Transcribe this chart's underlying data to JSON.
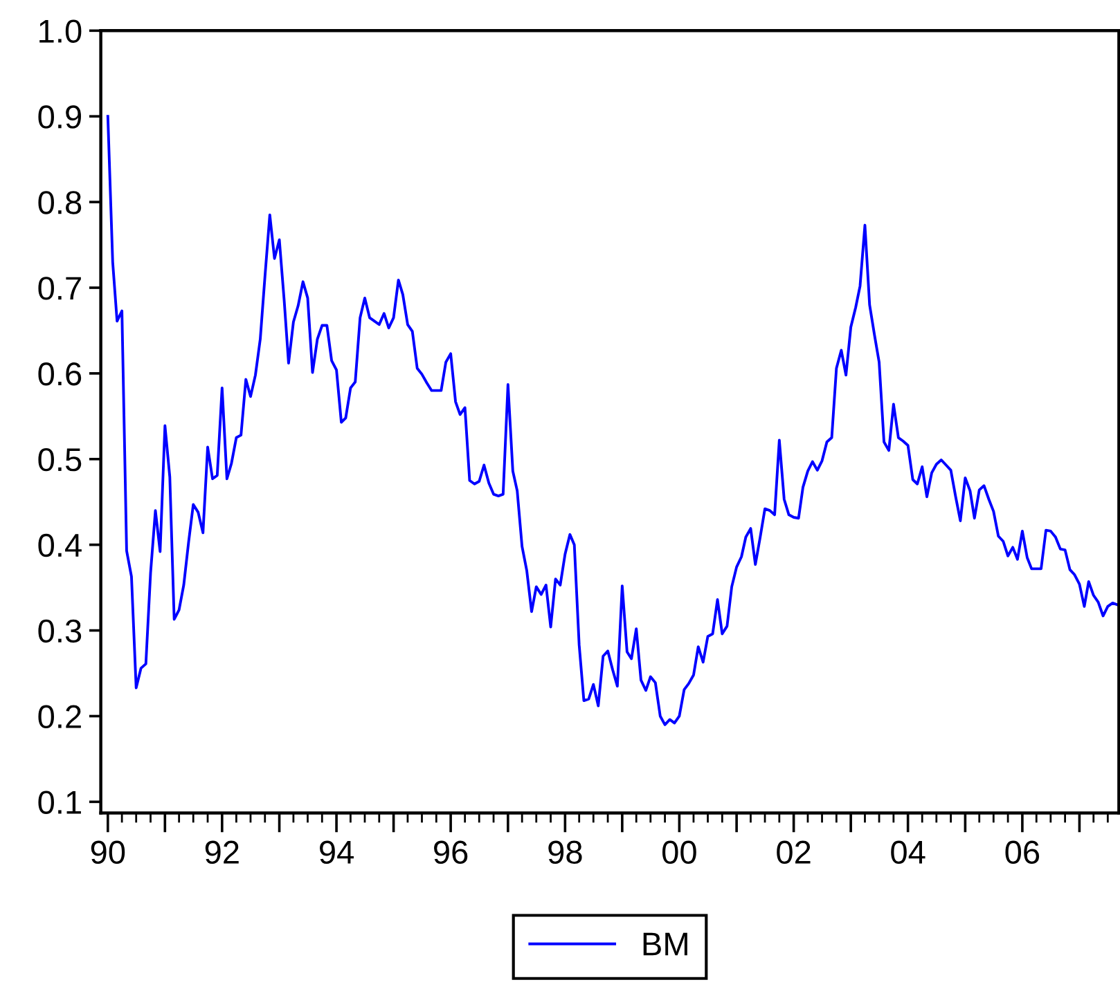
{
  "chart_data": {
    "type": "line",
    "legend": "bottom",
    "grid": false,
    "marker": "none",
    "line_style": "solid",
    "xlim": [
      "1989-11-17",
      "2007-09-10"
    ],
    "xticks": [
      {
        "value": "1990-01",
        "label": "90"
      },
      {
        "value": "1990-04",
        "label": null
      },
      {
        "value": "1990-07",
        "label": null
      },
      {
        "value": "1990-10",
        "label": null
      },
      {
        "value": "1991-01",
        "label": null
      },
      {
        "value": "1991-04",
        "label": null
      },
      {
        "value": "1991-07",
        "label": null
      },
      {
        "value": "1991-10",
        "label": null
      },
      {
        "value": "1992-01",
        "label": "92"
      },
      {
        "value": "1992-04",
        "label": null
      },
      {
        "value": "1992-07",
        "label": null
      },
      {
        "value": "1992-10",
        "label": null
      },
      {
        "value": "1993-01",
        "label": null
      },
      {
        "value": "1993-04",
        "label": null
      },
      {
        "value": "1993-07",
        "label": null
      },
      {
        "value": "1993-10",
        "label": null
      },
      {
        "value": "1994-01",
        "label": "94"
      },
      {
        "value": "1994-04",
        "label": null
      },
      {
        "value": "1994-07",
        "label": null
      },
      {
        "value": "1994-10",
        "label": null
      },
      {
        "value": "1995-01",
        "label": null
      },
      {
        "value": "1995-04",
        "label": null
      },
      {
        "value": "1995-07",
        "label": null
      },
      {
        "value": "1995-10",
        "label": null
      },
      {
        "value": "1996-01",
        "label": "96"
      },
      {
        "value": "1996-04",
        "label": null
      },
      {
        "value": "1996-07",
        "label": null
      },
      {
        "value": "1996-10",
        "label": null
      },
      {
        "value": "1997-01",
        "label": null
      },
      {
        "value": "1997-04",
        "label": null
      },
      {
        "value": "1997-07",
        "label": null
      },
      {
        "value": "1997-10",
        "label": null
      },
      {
        "value": "1998-01",
        "label": "98"
      },
      {
        "value": "1998-04",
        "label": null
      },
      {
        "value": "1998-07",
        "label": null
      },
      {
        "value": "1998-10",
        "label": null
      },
      {
        "value": "1999-01",
        "label": null
      },
      {
        "value": "1999-04",
        "label": null
      },
      {
        "value": "1999-07",
        "label": null
      },
      {
        "value": "1999-10",
        "label": null
      },
      {
        "value": "2000-01",
        "label": "00"
      },
      {
        "value": "2000-04",
        "label": null
      },
      {
        "value": "2000-07",
        "label": null
      },
      {
        "value": "2000-10",
        "label": null
      },
      {
        "value": "2001-01",
        "label": null
      },
      {
        "value": "2001-04",
        "label": null
      },
      {
        "value": "2001-07",
        "label": null
      },
      {
        "value": "2001-10",
        "label": null
      },
      {
        "value": "2002-01",
        "label": "02"
      },
      {
        "value": "2002-04",
        "label": null
      },
      {
        "value": "2002-07",
        "label": null
      },
      {
        "value": "2002-10",
        "label": null
      },
      {
        "value": "2003-01",
        "label": null
      },
      {
        "value": "2003-04",
        "label": null
      },
      {
        "value": "2003-07",
        "label": null
      },
      {
        "value": "2003-10",
        "label": null
      },
      {
        "value": "2004-01",
        "label": "04"
      },
      {
        "value": "2004-04",
        "label": null
      },
      {
        "value": "2004-07",
        "label": null
      },
      {
        "value": "2004-10",
        "label": null
      },
      {
        "value": "2005-01",
        "label": null
      },
      {
        "value": "2005-04",
        "label": null
      },
      {
        "value": "2005-07",
        "label": null
      },
      {
        "value": "2005-10",
        "label": null
      },
      {
        "value": "2006-01",
        "label": "06"
      },
      {
        "value": "2006-04",
        "label": null
      },
      {
        "value": "2006-07",
        "label": null
      },
      {
        "value": "2006-10",
        "label": null
      },
      {
        "value": "2007-01",
        "label": null
      },
      {
        "value": "2007-04",
        "label": null
      },
      {
        "value": "2007-07",
        "label": null
      }
    ],
    "ylim": [
      0.087,
      1.0
    ],
    "yticks": [
      0.1,
      0.2,
      0.3,
      0.4,
      0.5,
      0.6,
      0.7,
      0.8,
      0.9,
      {
        "value": 1,
        "label": "1.0"
      }
    ],
    "x": [
      "1990-01",
      "1990-02",
      "1990-03",
      "1990-04",
      "1990-05",
      "1990-06",
      "1990-07",
      "1990-08",
      "1990-09",
      "1990-10",
      "1990-11",
      "1990-12",
      "1991-01",
      "1991-02",
      "1991-03",
      "1991-04",
      "1991-05",
      "1991-06",
      "1991-07",
      "1991-08",
      "1991-09",
      "1991-10",
      "1991-11",
      "1991-12",
      "1992-01",
      "1992-02",
      "1992-03",
      "1992-04",
      "1992-05",
      "1992-06",
      "1992-07",
      "1992-08",
      "1992-09",
      "1992-10",
      "1992-11",
      "1992-12",
      "1993-01",
      "1993-02",
      "1993-03",
      "1993-04",
      "1993-05",
      "1993-06",
      "1993-07",
      "1993-08",
      "1993-09",
      "1993-10",
      "1993-11",
      "1993-12",
      "1994-01",
      "1994-02",
      "1994-03",
      "1994-04",
      "1994-05",
      "1994-06",
      "1994-07",
      "1994-08",
      "1994-09",
      "1994-10",
      "1994-11",
      "1994-12",
      "1995-01",
      "1995-02",
      "1995-03",
      "1995-04",
      "1995-05",
      "1995-06",
      "1995-07",
      "1995-08",
      "1995-09",
      "1995-10",
      "1995-11",
      "1995-12",
      "1996-01",
      "1996-02",
      "1996-03",
      "1996-04",
      "1996-05",
      "1996-06",
      "1996-07",
      "1996-08",
      "1996-09",
      "1996-10",
      "1996-11",
      "1996-12",
      "1997-01",
      "1997-02",
      "1997-03",
      "1997-04",
      "1997-05",
      "1997-06",
      "1997-07",
      "1997-08",
      "1997-09",
      "1997-10",
      "1997-11",
      "1997-12",
      "1998-01",
      "1998-02",
      "1998-03",
      "1998-04",
      "1998-05",
      "1998-06",
      "1998-07",
      "1998-08",
      "1998-09",
      "1998-10",
      "1998-11",
      "1998-12",
      "1999-01",
      "1999-02",
      "1999-03",
      "1999-04",
      "1999-05",
      "1999-06",
      "1999-07",
      "1999-08",
      "1999-09",
      "1999-10",
      "1999-11",
      "1999-12",
      "2000-01",
      "2000-02",
      "2000-03",
      "2000-04",
      "2000-05",
      "2000-06",
      "2000-07",
      "2000-08",
      "2000-09",
      "2000-10",
      "2000-11",
      "2000-12",
      "2001-01",
      "2001-02",
      "2001-03",
      "2001-04",
      "2001-05",
      "2001-06",
      "2001-07",
      "2001-08",
      "2001-09",
      "2001-10",
      "2001-11",
      "2001-12",
      "2002-01",
      "2002-02",
      "2002-03",
      "2002-04",
      "2002-05",
      "2002-06",
      "2002-07",
      "2002-08",
      "2002-09",
      "2002-10",
      "2002-11",
      "2002-12",
      "2003-01",
      "2003-02",
      "2003-03",
      "2003-04",
      "2003-05",
      "2003-06",
      "2003-07",
      "2003-08",
      "2003-09",
      "2003-10",
      "2003-11",
      "2003-12",
      "2004-01",
      "2004-02",
      "2004-03",
      "2004-04",
      "2004-05",
      "2004-06",
      "2004-07",
      "2004-08",
      "2004-09",
      "2004-10",
      "2004-11",
      "2004-12",
      "2005-01",
      "2005-02",
      "2005-03",
      "2005-04",
      "2005-05",
      "2005-06",
      "2005-07",
      "2005-08",
      "2005-09",
      "2005-10",
      "2005-11",
      "2005-12",
      "2006-01",
      "2006-02",
      "2006-03",
      "2006-04",
      "2006-05",
      "2006-06",
      "2006-07",
      "2006-08",
      "2006-09",
      "2006-10",
      "2006-11",
      "2006-12",
      "2007-01",
      "2007-02",
      "2007-03",
      "2007-04",
      "2007-05",
      "2007-06",
      "2007-07",
      "2007-08",
      "2007-09"
    ],
    "series": [
      {
        "name": "BM",
        "color": "#0000ff",
        "values": [
          0.9,
          0.73,
          0.661,
          0.673,
          0.393,
          0.363,
          0.233,
          0.256,
          0.261,
          0.367,
          0.44,
          0.392,
          0.539,
          0.479,
          0.313,
          0.324,
          0.353,
          0.403,
          0.447,
          0.438,
          0.414,
          0.514,
          0.477,
          0.481,
          0.583,
          0.477,
          0.495,
          0.525,
          0.528,
          0.593,
          0.573,
          0.598,
          0.64,
          0.713,
          0.785,
          0.734,
          0.756,
          0.685,
          0.612,
          0.66,
          0.679,
          0.707,
          0.688,
          0.601,
          0.64,
          0.656,
          0.656,
          0.615,
          0.604,
          0.543,
          0.548,
          0.583,
          0.59,
          0.665,
          0.688,
          0.665,
          0.661,
          0.657,
          0.67,
          0.653,
          0.665,
          0.709,
          0.692,
          0.657,
          0.649,
          0.606,
          0.599,
          0.589,
          0.58,
          0.58,
          0.58,
          0.613,
          0.623,
          0.567,
          0.552,
          0.56,
          0.475,
          0.471,
          0.474,
          0.493,
          0.472,
          0.459,
          0.457,
          0.459,
          0.587,
          0.486,
          0.463,
          0.398,
          0.37,
          0.322,
          0.351,
          0.342,
          0.353,
          0.304,
          0.36,
          0.353,
          0.389,
          0.412,
          0.4,
          0.283,
          0.218,
          0.22,
          0.237,
          0.212,
          0.27,
          0.276,
          0.254,
          0.235,
          0.352,
          0.275,
          0.267,
          0.302,
          0.242,
          0.23,
          0.246,
          0.239,
          0.2,
          0.19,
          0.196,
          0.192,
          0.2,
          0.231,
          0.238,
          0.248,
          0.281,
          0.263,
          0.293,
          0.296,
          0.336,
          0.296,
          0.305,
          0.351,
          0.374,
          0.386,
          0.409,
          0.419,
          0.377,
          0.409,
          0.442,
          0.44,
          0.435,
          0.522,
          0.453,
          0.435,
          0.432,
          0.431,
          0.467,
          0.486,
          0.497,
          0.487,
          0.498,
          0.52,
          0.525,
          0.606,
          0.627,
          0.598,
          0.654,
          0.677,
          0.702,
          0.773,
          0.68,
          0.645,
          0.613,
          0.52,
          0.51,
          0.564,
          0.525,
          0.521,
          0.516,
          0.476,
          0.471,
          0.491,
          0.456,
          0.484,
          0.494,
          0.499,
          0.493,
          0.487,
          0.456,
          0.428,
          0.478,
          0.463,
          0.431,
          0.464,
          0.469,
          0.453,
          0.439,
          0.41,
          0.404,
          0.387,
          0.397,
          0.383,
          0.416,
          0.385,
          0.372,
          0.372,
          0.372,
          0.417,
          0.416,
          0.409,
          0.395,
          0.394,
          0.371,
          0.365,
          0.354,
          0.328,
          0.357,
          0.341,
          0.333,
          0.317,
          0.328,
          0.332,
          0.33
        ]
      }
    ]
  }
}
